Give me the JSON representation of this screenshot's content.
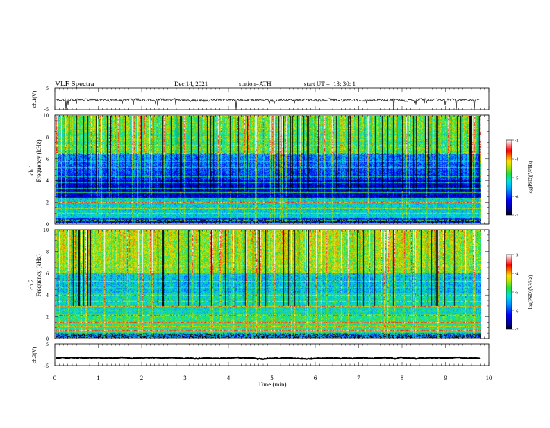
{
  "header": {
    "title": "VLF  Spectra",
    "date": "Dec.14, 2021",
    "station": "station=ATH",
    "start_label": "start  UT  =",
    "start_time": "13: 30: 1"
  },
  "chart_data": [
    {
      "type": "line",
      "panel": "ch1-waveform",
      "ylabel": "ch.1(V)",
      "ylim": [
        -5,
        5
      ],
      "yticks": [
        "5",
        "-5"
      ],
      "series": [
        {
          "baseline": -0.5,
          "noise_amplitude": 1.0,
          "spikes_to": -5
        }
      ],
      "color": "#000000"
    },
    {
      "type": "heatmap",
      "panel": "ch1-spectrogram",
      "ylabel_line1": "ch.1",
      "ylabel_line2": "Frequency  (kHz)",
      "ylim": [
        0,
        10
      ],
      "yticks": [
        "0",
        "2",
        "4",
        "6",
        "8",
        "10"
      ],
      "colorbar": {
        "label": "log(PSD)(V²/Hz)",
        "range": [
          -7,
          -3
        ],
        "ticks": [
          "-3",
          "-4",
          "-5",
          "-6",
          "-7"
        ]
      }
    },
    {
      "type": "heatmap",
      "panel": "ch2-spectrogram",
      "ylabel_line1": "ch.2",
      "ylabel_line2": "Frequency  (kHz)",
      "ylim": [
        0,
        10
      ],
      "yticks": [
        "0",
        "2",
        "4",
        "6",
        "8",
        "10"
      ],
      "colorbar": {
        "label": "log(PSD)(V²/Hz)",
        "range": [
          -7,
          -3
        ],
        "ticks": [
          "-3",
          "-4",
          "-5",
          "-6",
          "-7"
        ]
      }
    },
    {
      "type": "line",
      "panel": "ch3-waveform",
      "ylabel": "ch.3(V)",
      "ylim": [
        -5,
        5
      ],
      "yticks": [
        "5",
        "-5"
      ],
      "series": [
        {
          "baseline": -1.5,
          "noise_amplitude": 0.3
        }
      ],
      "color": "#000000"
    }
  ],
  "x_axis": {
    "label": "Time  (min)",
    "xlim": [
      0,
      10
    ],
    "ticks": [
      "0",
      "1",
      "2",
      "3",
      "4",
      "5",
      "6",
      "7",
      "8",
      "9",
      "10"
    ],
    "data_end": 9.8
  }
}
